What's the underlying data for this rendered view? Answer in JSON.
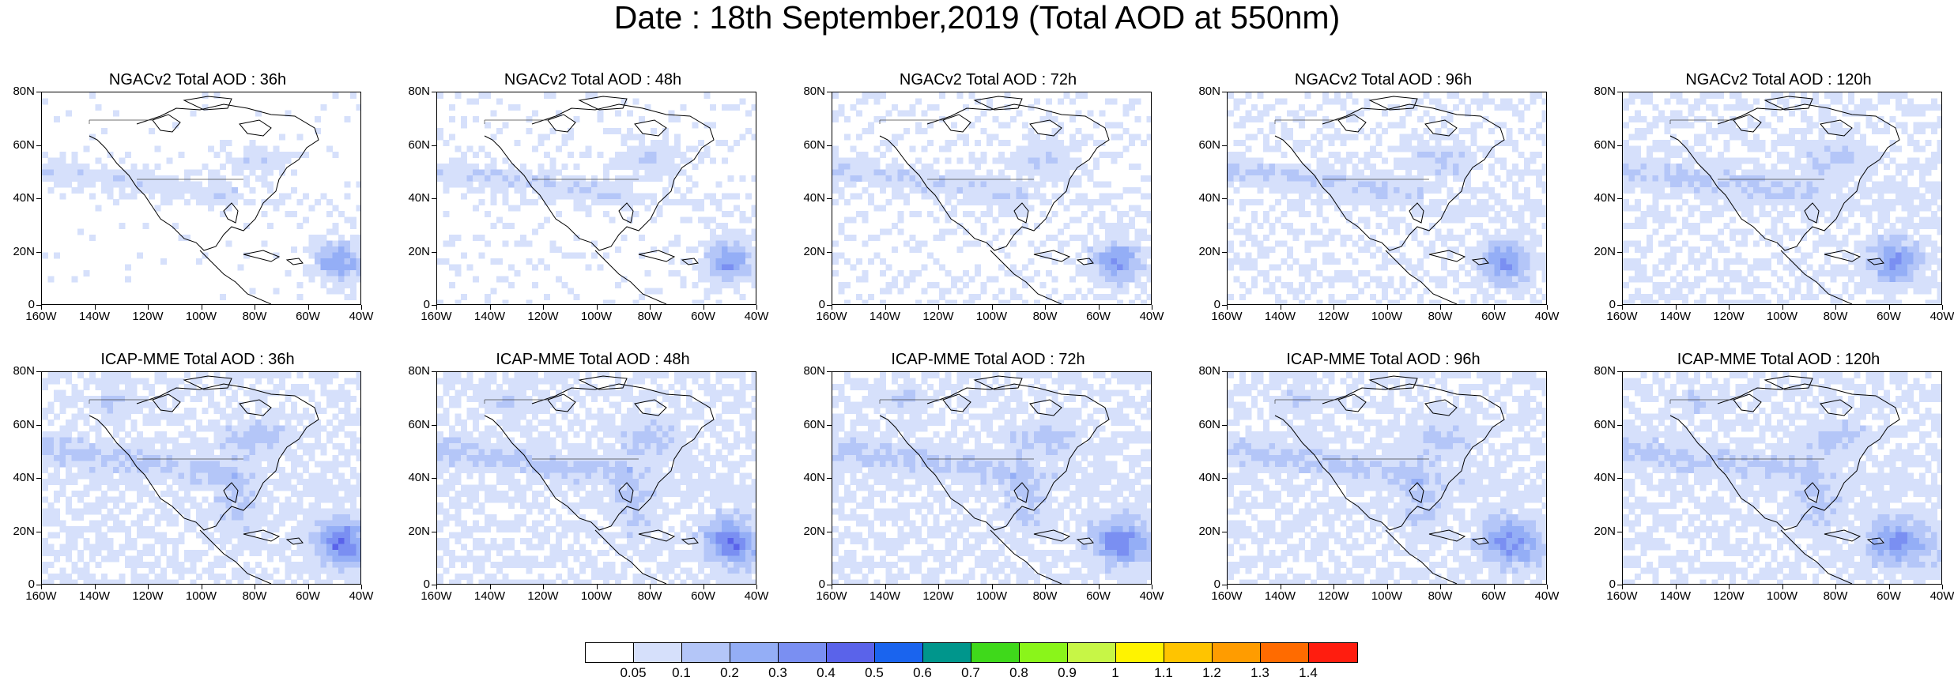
{
  "title": "Date : 18th September,2019 (Total AOD at 550nm)",
  "y_ticks": [
    "80N",
    "60N",
    "40N",
    "20N",
    "0"
  ],
  "x_ticks": [
    "160W",
    "140W",
    "120W",
    "100W",
    "80W",
    "60W",
    "40W"
  ],
  "panels": [
    {
      "title": "NGACv2 Total AOD : 36h"
    },
    {
      "title": "NGACv2 Total AOD : 48h"
    },
    {
      "title": "NGACv2 Total AOD : 72h"
    },
    {
      "title": "NGACv2 Total AOD : 96h"
    },
    {
      "title": "NGACv2 Total AOD : 120h"
    },
    {
      "title": "ICAP-MME Total AOD : 36h"
    },
    {
      "title": "ICAP-MME Total AOD : 48h"
    },
    {
      "title": "ICAP-MME Total AOD : 72h"
    },
    {
      "title": "ICAP-MME Total AOD : 96h"
    },
    {
      "title": "ICAP-MME Total AOD : 120h"
    }
  ],
  "colorbar": {
    "colors": [
      "#ffffff",
      "#d6e0fb",
      "#b4c6f8",
      "#94aef6",
      "#7a8ff2",
      "#5a63ea",
      "#1a64ee",
      "#00968c",
      "#3fd91b",
      "#8af51a",
      "#c7f646",
      "#fff300",
      "#ffc400",
      "#ff9c00",
      "#ff6b00",
      "#ff1d0f"
    ],
    "labels": [
      "0.05",
      "0.1",
      "0.2",
      "0.3",
      "0.4",
      "0.5",
      "0.6",
      "0.7",
      "0.8",
      "0.9",
      "1",
      "1.1",
      "1.2",
      "1.3",
      "1.4"
    ]
  }
}
